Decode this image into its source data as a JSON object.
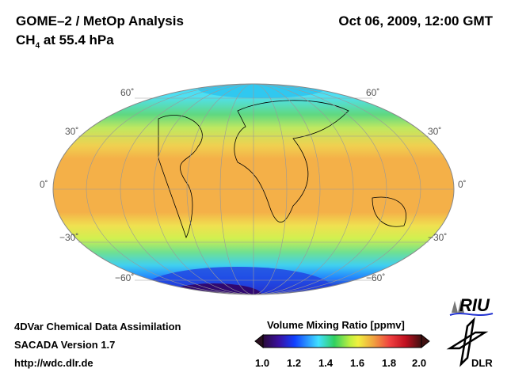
{
  "header": {
    "title": "GOME–2 / MetOp Analysis",
    "species": "CH",
    "species_sub": "4",
    "level": " at 55.4 hPa",
    "datetime": "Oct 06, 2009, 12:00 GMT"
  },
  "map": {
    "lat_labels": [
      "60˚",
      "30˚",
      "0˚",
      "−30˚",
      "−60˚"
    ]
  },
  "footer": {
    "line1": "4DVar Chemical Data Assimilation",
    "line2": "SACADA Version 1.7",
    "line3": "http://wdc.dlr.de"
  },
  "colorbar": {
    "title": "Volume Mixing Ratio [ppmv]",
    "ticks": [
      "1.0",
      "1.2",
      "1.4",
      "1.6",
      "1.8",
      "2.0"
    ],
    "colors": [
      "#2a0a3a",
      "#3a10a0",
      "#1040ff",
      "#20a0ff",
      "#40e0ff",
      "#30d060",
      "#a0f040",
      "#f0f040",
      "#f0a040",
      "#f04040",
      "#e01020",
      "#801818",
      "#401010"
    ]
  },
  "logos": {
    "riu": "RIU",
    "dlr": "DLR"
  }
}
